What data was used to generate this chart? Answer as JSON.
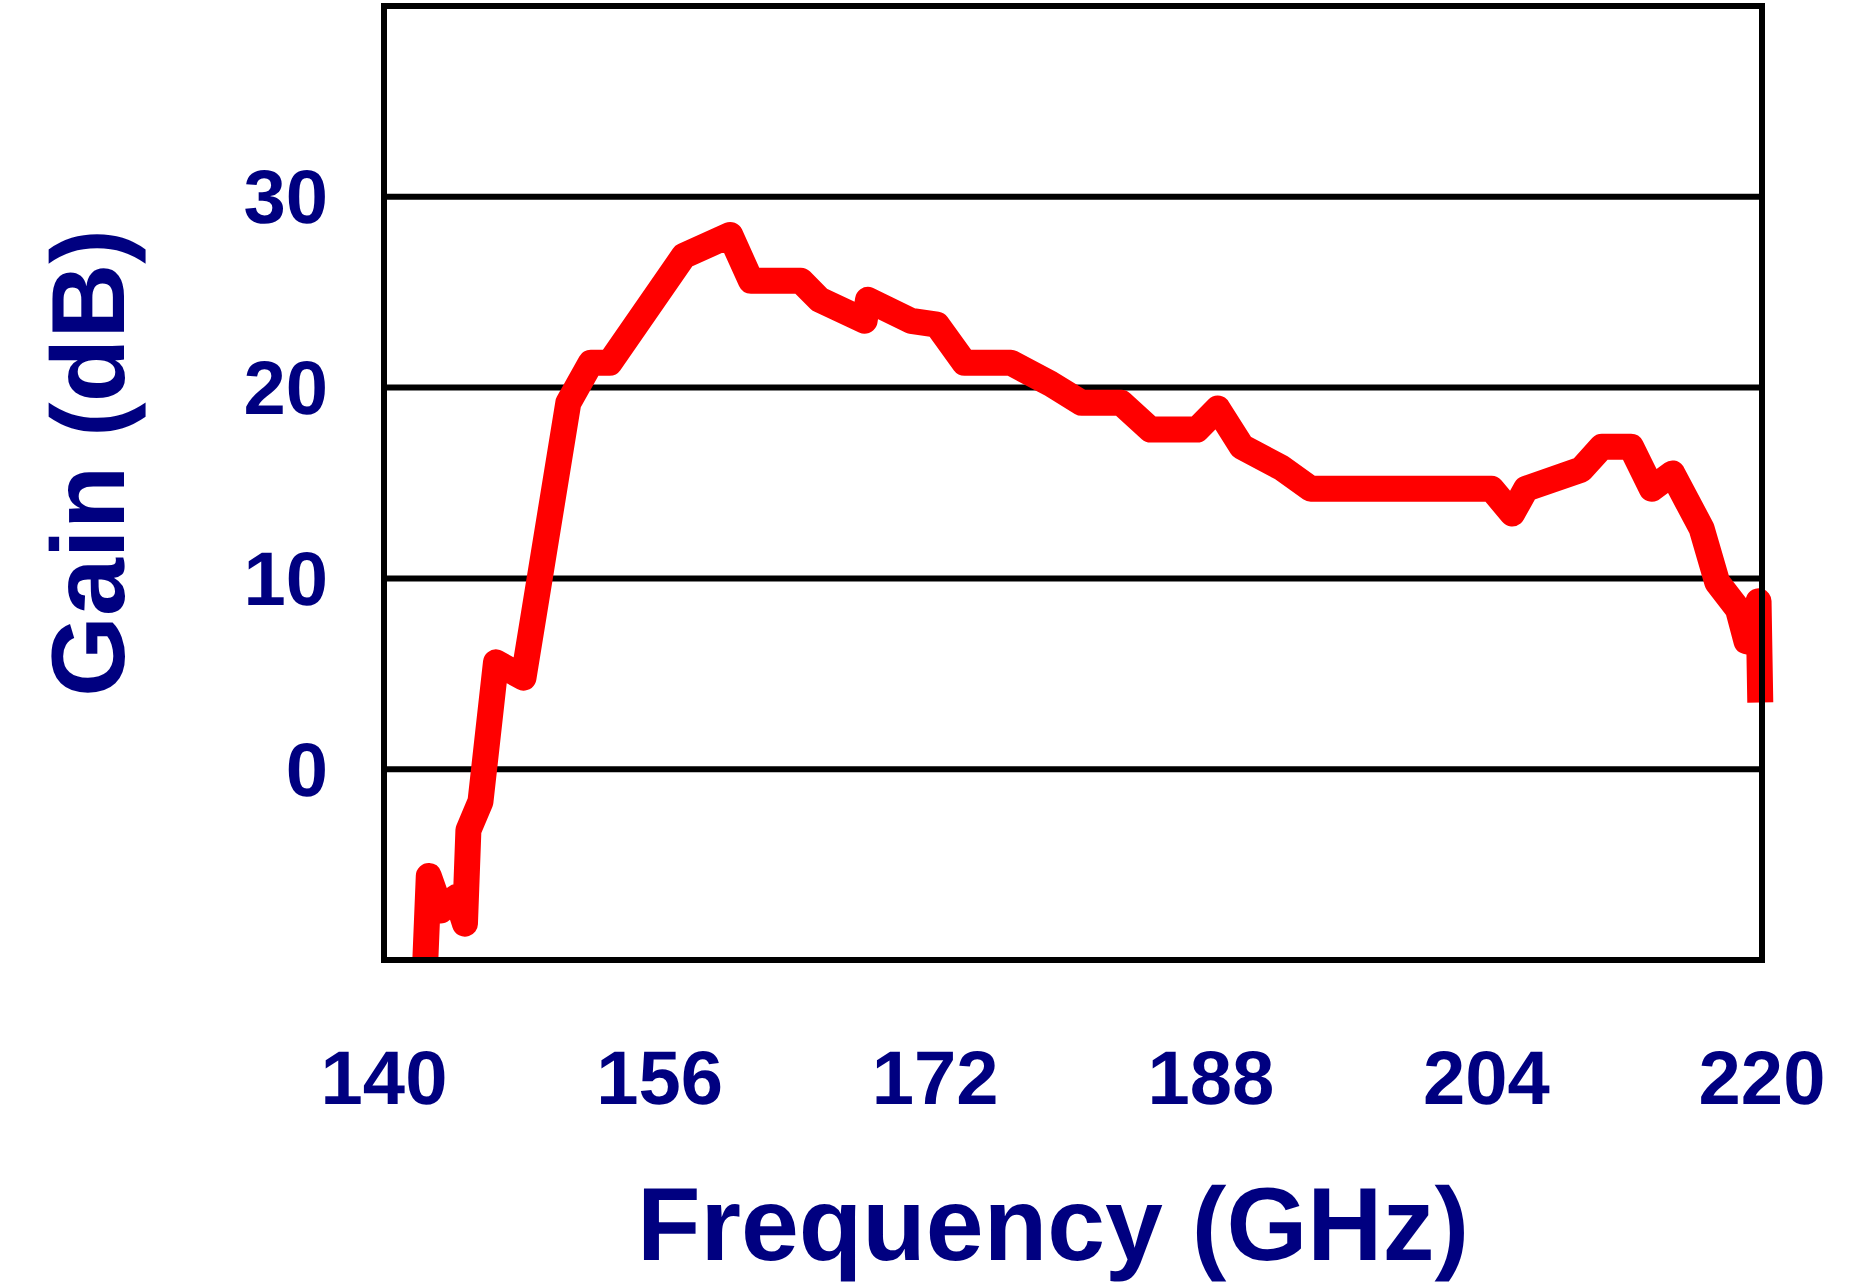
{
  "chart_data": {
    "type": "line",
    "xlabel": "Frequency (GHz)",
    "ylabel": "Gain (dB)",
    "xlim": [
      140,
      220
    ],
    "xticks": [
      140,
      156,
      172,
      188,
      204,
      220
    ],
    "ylim": [
      -10,
      40
    ],
    "yticks": [
      0,
      10,
      20,
      30
    ],
    "grid": "y",
    "line_style": "solid",
    "series": [
      {
        "color": "#ff0000",
        "x": [
          142.4,
          142.6,
          143.3,
          144.2,
          144.7,
          144.9,
          145.6,
          146.5,
          148.1,
          150.7,
          152,
          153.1,
          157.4,
          160.1,
          161.3,
          164.2,
          165.3,
          167.9,
          168.1,
          170.6,
          172.1,
          173.7,
          176.4,
          178.7,
          180.5,
          182.8,
          184.5,
          187.2,
          188.4,
          189.8,
          192.1,
          193.8,
          204.3,
          205.5,
          206.3,
          209.5,
          210.7,
          212.4,
          213.6,
          214.8,
          216.5,
          217.4,
          218.6,
          219.1,
          219.8,
          219.9
        ],
        "values": [
          -10,
          -5.6,
          -7.4,
          -6.7,
          -8.1,
          -3.2,
          -1.7,
          5.6,
          4.8,
          19.2,
          21.3,
          21.3,
          26.9,
          28,
          25.6,
          25.6,
          24.6,
          23.5,
          24.6,
          23.5,
          23.3,
          21.3,
          21.3,
          20.2,
          19.2,
          19.2,
          17.8,
          17.8,
          18.9,
          16.9,
          15.8,
          14.7,
          14.7,
          13.4,
          14.7,
          15.7,
          16.9,
          16.9,
          14.7,
          15.5,
          12.6,
          9.8,
          8.4,
          6.7,
          8.8,
          3.5
        ]
      }
    ]
  }
}
